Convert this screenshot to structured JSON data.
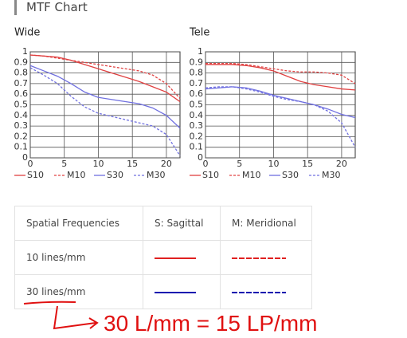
{
  "header": {
    "title": "MTF Chart"
  },
  "chart_data": [
    {
      "type": "line",
      "title": "Wide",
      "x": [
        0,
        2,
        4,
        6,
        8,
        10,
        12,
        14,
        16,
        18,
        20,
        22
      ],
      "xlim": [
        0,
        22
      ],
      "xticks": [
        0,
        5,
        10,
        15,
        20
      ],
      "ylim": [
        0,
        1
      ],
      "yticks": [
        0,
        0.1,
        0.2,
        0.3,
        0.4,
        0.5,
        0.6,
        0.7,
        0.8,
        0.9,
        1
      ],
      "grid": true,
      "series": [
        {
          "name": "S10",
          "color": "#e04040",
          "line_style": "solid",
          "values": [
            0.97,
            0.96,
            0.95,
            0.92,
            0.88,
            0.84,
            0.8,
            0.76,
            0.72,
            0.67,
            0.62,
            0.53
          ]
        },
        {
          "name": "M10",
          "color": "#e04040",
          "line_style": "dashed",
          "values": [
            0.97,
            0.96,
            0.94,
            0.92,
            0.9,
            0.88,
            0.86,
            0.84,
            0.82,
            0.78,
            0.7,
            0.56
          ]
        },
        {
          "name": "S30",
          "color": "#7070e0",
          "line_style": "solid",
          "values": [
            0.87,
            0.82,
            0.77,
            0.7,
            0.62,
            0.57,
            0.55,
            0.53,
            0.51,
            0.47,
            0.4,
            0.28
          ]
        },
        {
          "name": "M30",
          "color": "#7070e0",
          "line_style": "dashed",
          "values": [
            0.85,
            0.78,
            0.7,
            0.58,
            0.48,
            0.42,
            0.39,
            0.36,
            0.33,
            0.3,
            0.22,
            0.02
          ]
        }
      ]
    },
    {
      "type": "line",
      "title": "Tele",
      "x": [
        0,
        2,
        4,
        6,
        8,
        10,
        12,
        14,
        16,
        18,
        20,
        22
      ],
      "xlim": [
        0,
        22
      ],
      "xticks": [
        0,
        5,
        10,
        15,
        20
      ],
      "ylim": [
        0,
        1
      ],
      "yticks": [
        0,
        0.1,
        0.2,
        0.3,
        0.4,
        0.5,
        0.6,
        0.7,
        0.8,
        0.9,
        1
      ],
      "grid": true,
      "series": [
        {
          "name": "S10",
          "color": "#e04040",
          "line_style": "solid",
          "values": [
            0.88,
            0.88,
            0.88,
            0.87,
            0.85,
            0.82,
            0.77,
            0.72,
            0.69,
            0.67,
            0.65,
            0.64
          ]
        },
        {
          "name": "M10",
          "color": "#e04040",
          "line_style": "dashed",
          "values": [
            0.89,
            0.89,
            0.89,
            0.88,
            0.86,
            0.84,
            0.82,
            0.81,
            0.81,
            0.8,
            0.78,
            0.7
          ]
        },
        {
          "name": "S30",
          "color": "#7070e0",
          "line_style": "solid",
          "values": [
            0.65,
            0.66,
            0.67,
            0.66,
            0.63,
            0.59,
            0.56,
            0.53,
            0.5,
            0.46,
            0.41,
            0.38
          ]
        },
        {
          "name": "M30",
          "color": "#7070e0",
          "line_style": "dashed",
          "values": [
            0.66,
            0.67,
            0.67,
            0.65,
            0.62,
            0.58,
            0.55,
            0.53,
            0.5,
            0.44,
            0.33,
            0.1
          ]
        }
      ]
    }
  ],
  "table": {
    "header": [
      "Spatial Frequencies",
      "S: Sagittal",
      "M: Meridional"
    ],
    "rows": [
      "10 lines/mm",
      "30 lines/mm"
    ]
  },
  "annotation": "30 L/mm = 15 LP/mm"
}
